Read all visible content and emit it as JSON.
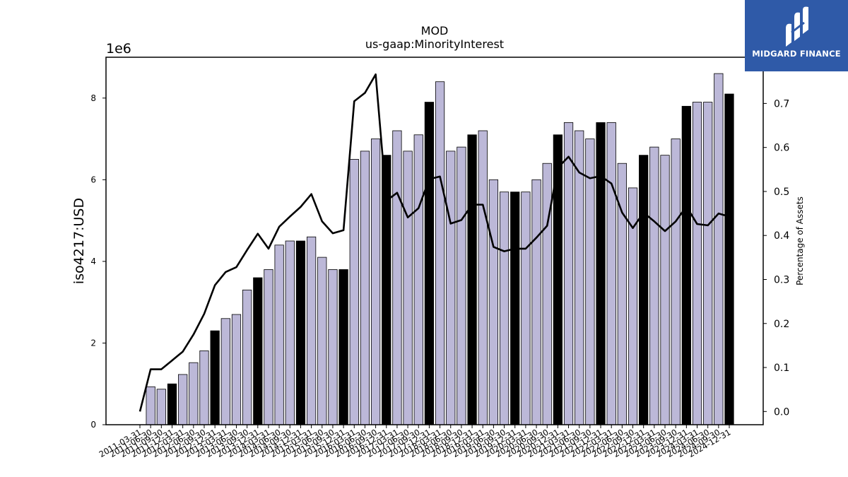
{
  "brand": {
    "name": "MIDGARD FINANCE",
    "color": "#2f5aa8"
  },
  "chart_data": {
    "type": "bar",
    "title": "MOD",
    "subtitle": "us-gaap:MinorityInterest",
    "ylabel": "iso4217:USD",
    "y_multiplier_label": "1e6",
    "y2label": "Percentage of Assets",
    "ylim": [
      0,
      9000000
    ],
    "y2lim": [
      -0.03,
      0.805
    ],
    "yticks": [
      0,
      2,
      4,
      6,
      8
    ],
    "y2ticks": [
      "0.0",
      "0.1",
      "0.2",
      "0.3",
      "0.4",
      "0.5",
      "0.6",
      "0.7"
    ],
    "legend": "none",
    "grid": false,
    "colors": {
      "bar": "#bcb8d8",
      "bar_highlight": "#000000",
      "line": "#000000"
    },
    "categories": [
      "2011-03-31",
      "2011-06-30",
      "2011-09-30",
      "2011-12-31",
      "2012-03-31",
      "2012-06-30",
      "2012-09-30",
      "2012-12-31",
      "2013-03-31",
      "2013-06-30",
      "2013-09-30",
      "2013-12-31",
      "2014-03-31",
      "2014-06-30",
      "2014-09-30",
      "2014-12-31",
      "2015-03-31",
      "2015-06-30",
      "2015-09-30",
      "2015-12-31",
      "2016-03-31",
      "2016-06-30",
      "2016-09-30",
      "2016-12-31",
      "2017-03-31",
      "2017-06-30",
      "2017-09-30",
      "2017-12-31",
      "2018-03-31",
      "2018-06-30",
      "2018-09-30",
      "2018-12-31",
      "2019-03-31",
      "2019-06-30",
      "2019-09-30",
      "2019-12-31",
      "2020-03-31",
      "2020-06-30",
      "2020-09-30",
      "2020-12-31",
      "2021-03-31",
      "2021-06-30",
      "2021-09-30",
      "2021-12-31",
      "2022-03-31",
      "2022-06-30",
      "2022-09-30",
      "2022-12-31",
      "2023-03-31",
      "2023-06-30",
      "2023-09-30",
      "2023-12-31",
      "2024-03-31",
      "2024-06-30",
      "2024-09-30",
      "2024-12-31"
    ],
    "series": [
      {
        "type": "bar",
        "values": [
          null,
          930000,
          870000,
          1000000,
          1230000,
          1520000,
          1810000,
          2300000,
          2600000,
          2700000,
          3300000,
          3600000,
          3800000,
          4400000,
          4500000,
          4500000,
          4600000,
          4100000,
          3800000,
          3800000,
          6500000,
          6700000,
          7000000,
          6600000,
          7200000,
          6700000,
          7100000,
          7900000,
          8400000,
          6700000,
          6800000,
          7100000,
          7200000,
          6000000,
          5700000,
          5700000,
          5700000,
          6000000,
          6400000,
          7100000,
          7400000,
          7200000,
          7000000,
          7400000,
          7400000,
          6400000,
          5800000,
          6600000,
          6800000,
          6600000,
          7000000,
          7800000,
          7900000,
          7900000,
          8600000,
          8100000
        ],
        "highlight": [
          false,
          false,
          false,
          true,
          false,
          false,
          false,
          true,
          false,
          false,
          false,
          true,
          false,
          false,
          false,
          true,
          false,
          false,
          false,
          true,
          false,
          false,
          false,
          true,
          false,
          false,
          false,
          true,
          false,
          false,
          false,
          true,
          false,
          false,
          false,
          true,
          false,
          false,
          false,
          true,
          false,
          false,
          false,
          true,
          false,
          false,
          false,
          true,
          false,
          false,
          false,
          true,
          false,
          false,
          false,
          true
        ]
      },
      {
        "type": "line",
        "axis": "right",
        "values": [
          0.0,
          0.096,
          0.096,
          0.116,
          0.136,
          0.175,
          0.222,
          0.287,
          0.317,
          0.328,
          0.367,
          0.404,
          0.37,
          0.42,
          0.443,
          0.465,
          0.494,
          0.432,
          0.405,
          0.412,
          0.705,
          0.724,
          0.766,
          0.479,
          0.497,
          0.441,
          0.462,
          0.528,
          0.534,
          0.427,
          0.435,
          0.47,
          0.47,
          0.374,
          0.364,
          0.37,
          0.37,
          0.395,
          0.422,
          0.554,
          0.579,
          0.543,
          0.53,
          0.535,
          0.518,
          0.452,
          0.417,
          0.452,
          0.432,
          0.41,
          0.432,
          0.466,
          0.426,
          0.423,
          0.45,
          0.443
        ]
      }
    ]
  }
}
